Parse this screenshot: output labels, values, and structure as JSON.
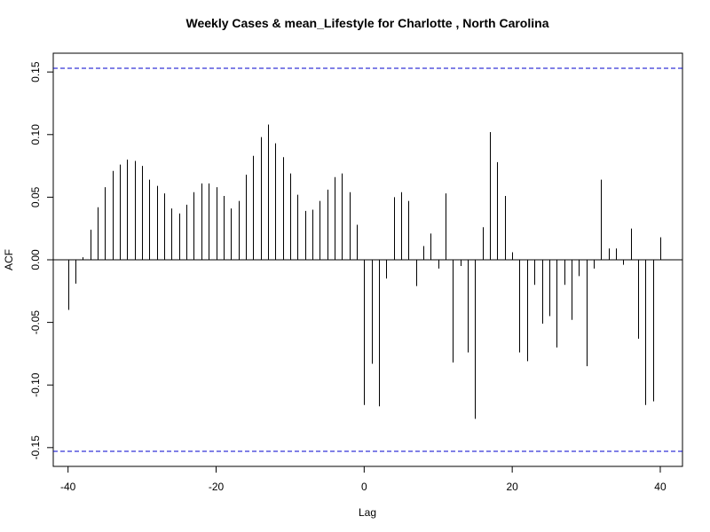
{
  "chart_data": {
    "type": "bar",
    "title": "Weekly Cases & mean_Lifestyle for Charlotte , North Carolina",
    "xlabel": "Lag",
    "ylabel": "ACF",
    "xlim": [
      -42,
      43
    ],
    "ylim": [
      -0.165,
      0.165
    ],
    "xticks": [
      -40,
      -20,
      0,
      20,
      40
    ],
    "xtick_labels": [
      "-40",
      "-20",
      "0",
      "20",
      "40"
    ],
    "yticks": [
      -0.15,
      -0.1,
      -0.05,
      0.0,
      0.05,
      0.1,
      0.15
    ],
    "ytick_labels": [
      "-0.15",
      "-0.10",
      "-0.05",
      "0.00",
      "0.05",
      "0.10",
      "0.15"
    ],
    "confidence_bound": 0.153,
    "colors": {
      "bars": "#000000",
      "bounds": "#0000cc",
      "zero_line": "#000000"
    },
    "grid": false,
    "lags": [
      -40,
      -39,
      -38,
      -37,
      -36,
      -35,
      -34,
      -33,
      -32,
      -31,
      -30,
      -29,
      -28,
      -27,
      -26,
      -25,
      -24,
      -23,
      -22,
      -21,
      -20,
      -19,
      -18,
      -17,
      -16,
      -15,
      -14,
      -13,
      -12,
      -11,
      -10,
      -9,
      -8,
      -7,
      -6,
      -5,
      -4,
      -3,
      -2,
      -1,
      0,
      1,
      2,
      3,
      4,
      5,
      6,
      7,
      8,
      9,
      10,
      11,
      12,
      13,
      14,
      15,
      16,
      17,
      18,
      19,
      20,
      21,
      22,
      23,
      24,
      25,
      26,
      27,
      28,
      29,
      30,
      31,
      32,
      33,
      34,
      35,
      36,
      37,
      38,
      39,
      40
    ],
    "values": [
      -0.04,
      -0.019,
      0.002,
      0.024,
      0.042,
      0.058,
      0.071,
      0.076,
      0.08,
      0.079,
      0.075,
      0.064,
      0.059,
      0.053,
      0.041,
      0.037,
      0.044,
      0.054,
      0.061,
      0.061,
      0.058,
      0.051,
      0.041,
      0.047,
      0.068,
      0.083,
      0.098,
      0.108,
      0.093,
      0.082,
      0.069,
      0.052,
      0.039,
      0.04,
      0.047,
      0.056,
      0.066,
      0.069,
      0.054,
      0.028,
      -0.116,
      -0.083,
      -0.117,
      -0.015,
      0.05,
      0.054,
      0.047,
      -0.021,
      0.011,
      0.021,
      -0.007,
      0.053,
      -0.082,
      -0.005,
      -0.074,
      -0.127,
      0.026,
      0.102,
      0.078,
      0.051,
      0.006,
      -0.074,
      -0.081,
      -0.02,
      -0.051,
      -0.045,
      -0.07,
      -0.02,
      -0.048,
      -0.013,
      -0.085,
      -0.007,
      0.064,
      0.009,
      0.009,
      -0.004,
      0.025,
      -0.063,
      -0.116,
      -0.113,
      0.018
    ]
  }
}
